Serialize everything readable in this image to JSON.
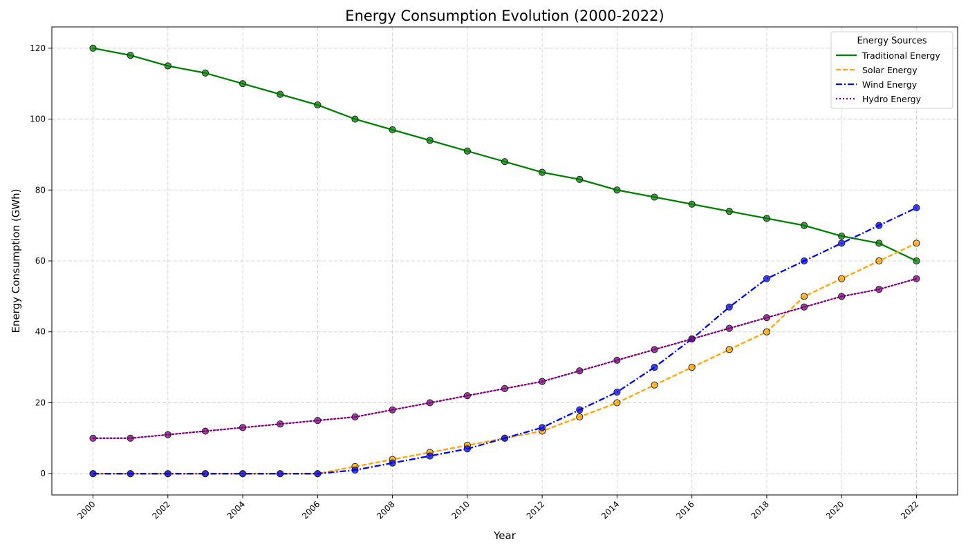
{
  "chart_data": {
    "type": "line",
    "title": "Energy Consumption Evolution (2000-2022)",
    "xlabel": "Year",
    "ylabel": "Energy Consumption (GWh)",
    "xlim": [
      1998.9,
      2023.1
    ],
    "ylim": [
      -6,
      126
    ],
    "x": [
      2000,
      2001,
      2002,
      2003,
      2004,
      2005,
      2006,
      2007,
      2008,
      2009,
      2010,
      2011,
      2012,
      2013,
      2014,
      2015,
      2016,
      2017,
      2018,
      2019,
      2020,
      2021,
      2022
    ],
    "x_ticks": [
      "2000",
      "2002",
      "2004",
      "2006",
      "2008",
      "2010",
      "2012",
      "2014",
      "2016",
      "2018",
      "2020",
      "2022"
    ],
    "y_ticks": [
      "0",
      "20",
      "40",
      "60",
      "80",
      "100",
      "120"
    ],
    "grid": true,
    "legend": {
      "title": "Energy Sources",
      "placement": "top-right"
    },
    "series": [
      {
        "name": "Traditional Energy",
        "color": "#008000",
        "style": "solid",
        "values": [
          120,
          118,
          115,
          113,
          110,
          107,
          104,
          100,
          97,
          94,
          91,
          88,
          85,
          83,
          80,
          78,
          76,
          74,
          72,
          70,
          67,
          65,
          60
        ]
      },
      {
        "name": "Solar Energy",
        "color": "#FFA500",
        "style": "dashed",
        "values": [
          0,
          0,
          0,
          0,
          0,
          0,
          0,
          2,
          4,
          6,
          8,
          10,
          12,
          16,
          20,
          25,
          30,
          35,
          40,
          50,
          55,
          60,
          65
        ]
      },
      {
        "name": "Wind Energy",
        "color": "#0000FF",
        "style": "dashdot",
        "values": [
          0,
          0,
          0,
          0,
          0,
          0,
          0,
          1,
          3,
          5,
          7,
          10,
          13,
          18,
          23,
          30,
          38,
          47,
          55,
          60,
          65,
          70,
          75
        ]
      },
      {
        "name": "Hydro Energy",
        "color": "#800080",
        "style": "dotted",
        "values": [
          10,
          10,
          11,
          12,
          13,
          14,
          15,
          16,
          18,
          20,
          22,
          24,
          26,
          29,
          32,
          35,
          38,
          41,
          44,
          47,
          50,
          52,
          55
        ]
      }
    ]
  }
}
